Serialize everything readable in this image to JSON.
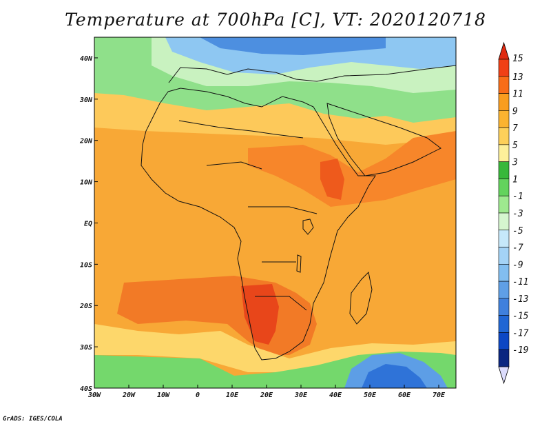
{
  "title": "Temperature at 700hPa [C], VT: 2020120718",
  "credit": "GrADS: IGES/COLA",
  "map": {
    "lon_range": [
      -30,
      75
    ],
    "lat_range": [
      -40,
      45
    ],
    "lon_ticks": [
      {
        "value": -30,
        "label": "30W"
      },
      {
        "value": -20,
        "label": "20W"
      },
      {
        "value": -10,
        "label": "10W"
      },
      {
        "value": 0,
        "label": "0"
      },
      {
        "value": 10,
        "label": "10E"
      },
      {
        "value": 20,
        "label": "20E"
      },
      {
        "value": 30,
        "label": "30E"
      },
      {
        "value": 40,
        "label": "40E"
      },
      {
        "value": 50,
        "label": "50E"
      },
      {
        "value": 60,
        "label": "60E"
      },
      {
        "value": 70,
        "label": "70E"
      }
    ],
    "lat_ticks": [
      {
        "value": 40,
        "label": "40N"
      },
      {
        "value": 30,
        "label": "30N"
      },
      {
        "value": 20,
        "label": "20N"
      },
      {
        "value": 10,
        "label": "10N"
      },
      {
        "value": 0,
        "label": "EQ"
      },
      {
        "value": -10,
        "label": "10S"
      },
      {
        "value": -20,
        "label": "20S"
      },
      {
        "value": -30,
        "label": "30S"
      },
      {
        "value": -40,
        "label": "40S"
      }
    ]
  },
  "colorbar": {
    "levels": [
      "15",
      "13",
      "11",
      "9",
      "7",
      "5",
      "3",
      "1",
      "-1",
      "-3",
      "-5",
      "-7",
      "-9",
      "-11",
      "-13",
      "-15",
      "-17",
      "-19"
    ],
    "colors": [
      "#f04016",
      "#f86d18",
      "#f99d1e",
      "#fbb330",
      "#fdd05a",
      "#fdf09a",
      "#38b83a",
      "#63d35d",
      "#9ee98f",
      "#d5f6cf",
      "#c6e8fa",
      "#a4d3f6",
      "#82bef0",
      "#5f9fe6",
      "#3f80dd",
      "#2066d4",
      "#0c47c4",
      "#0a2680"
    ],
    "top_arrow_color": "#e02a10",
    "bottom_arrow_color": "#dcdcfc"
  }
}
